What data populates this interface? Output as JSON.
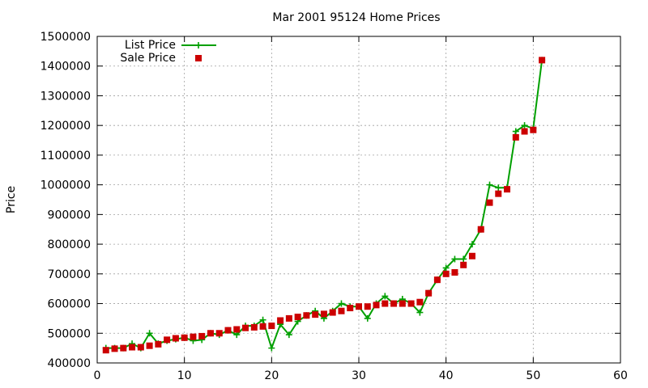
{
  "chart_data": {
    "type": "line",
    "title": "Mar 2001 95124 Home Prices",
    "xlabel": "",
    "ylabel": "Price",
    "xlim": [
      0,
      60
    ],
    "ylim": [
      400000,
      1500000
    ],
    "xticks": [
      0,
      10,
      20,
      30,
      40,
      50,
      60
    ],
    "yticks": [
      400000,
      500000,
      600000,
      700000,
      800000,
      900000,
      1000000,
      1100000,
      1200000,
      1300000,
      1400000,
      1500000
    ],
    "grid": true,
    "legend_position": "top-left",
    "series": [
      {
        "name": "List Price",
        "style": "line+cross",
        "color": "#00a000",
        "x": [
          1,
          2,
          3,
          4,
          5,
          6,
          7,
          8,
          9,
          10,
          11,
          12,
          13,
          14,
          15,
          16,
          17,
          18,
          19,
          20,
          21,
          22,
          23,
          24,
          25,
          26,
          27,
          28,
          29,
          30,
          31,
          32,
          33,
          34,
          35,
          36,
          37,
          38,
          39,
          40,
          41,
          42,
          43,
          44,
          45,
          46,
          47,
          48,
          49,
          50,
          51
        ],
        "y": [
          450000,
          450000,
          450000,
          465000,
          450000,
          500000,
          465000,
          475000,
          480000,
          485000,
          475000,
          478000,
          500000,
          495000,
          510000,
          495000,
          525000,
          525000,
          545000,
          450000,
          530000,
          495000,
          540000,
          560000,
          575000,
          550000,
          575000,
          600000,
          590000,
          590000,
          550000,
          600000,
          625000,
          600000,
          615000,
          600000,
          570000,
          635000,
          680000,
          720000,
          750000,
          750000,
          800000,
          850000,
          1000000,
          990000,
          990000,
          1180000,
          1200000,
          1190000,
          1420000
        ]
      },
      {
        "name": "Sale Price",
        "style": "square",
        "color": "#cc0000",
        "x": [
          1,
          2,
          3,
          4,
          5,
          6,
          7,
          8,
          9,
          10,
          11,
          12,
          13,
          14,
          15,
          16,
          17,
          18,
          19,
          20,
          21,
          22,
          23,
          24,
          25,
          26,
          27,
          28,
          29,
          30,
          31,
          32,
          33,
          34,
          35,
          36,
          37,
          38,
          39,
          40,
          41,
          42,
          43,
          44,
          45,
          46,
          47,
          48,
          49,
          50,
          51
        ],
        "y": [
          443000,
          448000,
          450000,
          453000,
          453000,
          458000,
          463000,
          478000,
          483000,
          485000,
          488000,
          490000,
          500000,
          500000,
          510000,
          513000,
          518000,
          520000,
          523000,
          525000,
          543000,
          550000,
          555000,
          560000,
          563000,
          565000,
          570000,
          575000,
          585000,
          590000,
          590000,
          595000,
          600000,
          600000,
          600000,
          600000,
          605000,
          635000,
          680000,
          700000,
          705000,
          730000,
          760000,
          850000,
          940000,
          970000,
          985000,
          1160000,
          1180000,
          1185000,
          1420000
        ]
      }
    ]
  }
}
